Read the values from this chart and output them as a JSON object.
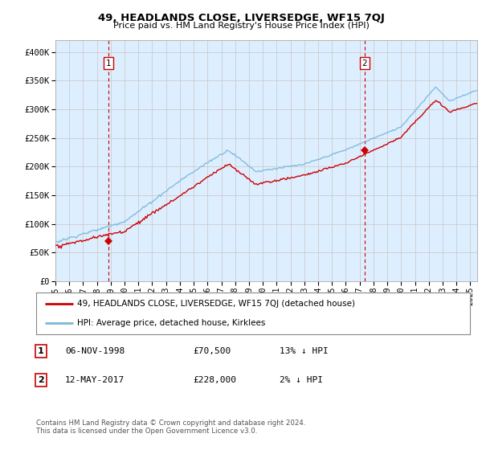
{
  "title": "49, HEADLANDS CLOSE, LIVERSEDGE, WF15 7QJ",
  "subtitle": "Price paid vs. HM Land Registry's House Price Index (HPI)",
  "ylabel_ticks": [
    "£0",
    "£50K",
    "£100K",
    "£150K",
    "£200K",
    "£250K",
    "£300K",
    "£350K",
    "£400K"
  ],
  "ytick_values": [
    0,
    50000,
    100000,
    150000,
    200000,
    250000,
    300000,
    350000,
    400000
  ],
  "ylim": [
    0,
    420000
  ],
  "xlim_start": 1995.0,
  "xlim_end": 2025.5,
  "sale1_date": 1998.85,
  "sale1_price": 70500,
  "sale2_date": 2017.37,
  "sale2_price": 228000,
  "hpi_color": "#7ab8d9",
  "price_color": "#cc0000",
  "vline_color": "#cc0000",
  "grid_color": "#cccccc",
  "fill_color": "#ddeeff",
  "background_color": "#ffffff",
  "legend_label1": "49, HEADLANDS CLOSE, LIVERSEDGE, WF15 7QJ (detached house)",
  "legend_label2": "HPI: Average price, detached house, Kirklees",
  "table_row1": [
    "1",
    "06-NOV-1998",
    "£70,500",
    "13% ↓ HPI"
  ],
  "table_row2": [
    "2",
    "12-MAY-2017",
    "£228,000",
    "2% ↓ HPI"
  ],
  "footnote": "Contains HM Land Registry data © Crown copyright and database right 2024.\nThis data is licensed under the Open Government Licence v3.0.",
  "xtick_years": [
    1995,
    1996,
    1997,
    1998,
    1999,
    2000,
    2001,
    2002,
    2003,
    2004,
    2005,
    2006,
    2007,
    2008,
    2009,
    2010,
    2011,
    2012,
    2013,
    2014,
    2015,
    2016,
    2017,
    2018,
    2019,
    2020,
    2021,
    2022,
    2023,
    2024,
    2025
  ]
}
